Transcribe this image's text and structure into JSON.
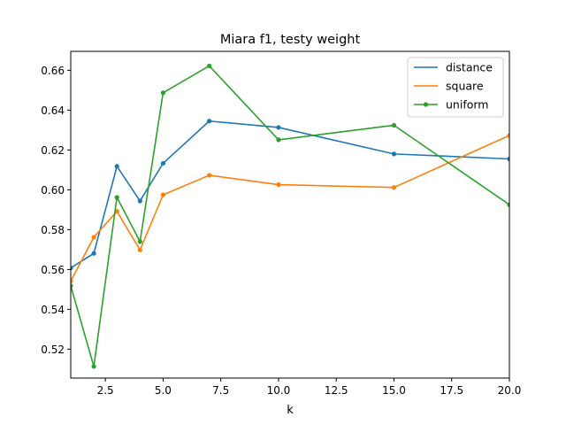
{
  "chart_data": {
    "type": "line",
    "title": "Miara f1, testy weight",
    "xlabel": "k",
    "ylabel": "",
    "xlim": [
      1,
      20
    ],
    "ylim": [
      0.5055,
      0.6695
    ],
    "xticks": [
      2.5,
      5.0,
      7.5,
      10.0,
      12.5,
      15.0,
      17.5,
      20.0
    ],
    "xtick_labels": [
      "2.5",
      "5.0",
      "7.5",
      "10.0",
      "12.5",
      "15.0",
      "17.5",
      "20.0"
    ],
    "yticks": [
      0.52,
      0.54,
      0.56,
      0.58,
      0.6,
      0.62,
      0.64,
      0.66
    ],
    "ytick_labels": [
      "0.52",
      "0.54",
      "0.56",
      "0.58",
      "0.60",
      "0.62",
      "0.64",
      "0.66"
    ],
    "grid": false,
    "legend_position": "top-right",
    "x": [
      1,
      2,
      3,
      4,
      5,
      7,
      10,
      15,
      20
    ],
    "series": [
      {
        "name": "distance",
        "color": "#1f77b4",
        "values": [
          0.5608,
          0.5681,
          0.6118,
          0.5944,
          0.6133,
          0.6345,
          0.6313,
          0.618,
          0.6155
        ]
      },
      {
        "name": "square",
        "color": "#ff7f0e",
        "values": [
          0.5541,
          0.5762,
          0.5892,
          0.5698,
          0.5975,
          0.6073,
          0.6026,
          0.6012,
          0.6273
        ]
      },
      {
        "name": "uniform",
        "color": "#2ca02c",
        "values": [
          0.5518,
          0.5113,
          0.5962,
          0.574,
          0.6487,
          0.6622,
          0.6251,
          0.6324,
          0.5925
        ]
      }
    ]
  }
}
